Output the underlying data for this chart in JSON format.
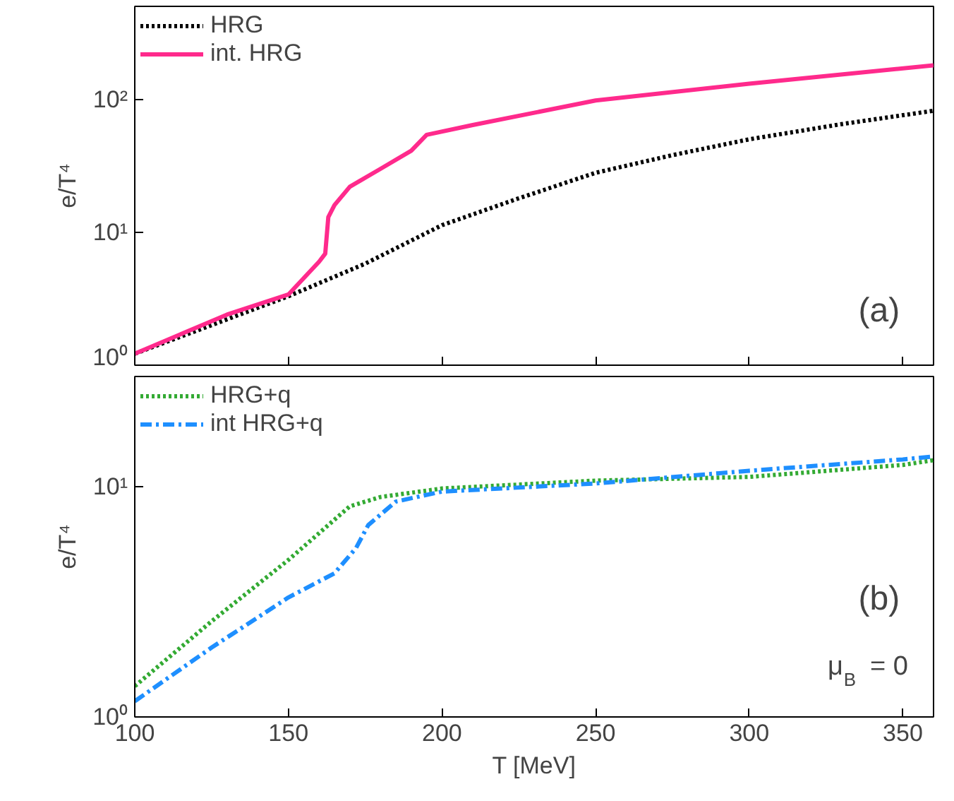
{
  "chart_data": [
    {
      "type": "line",
      "ylabel": "e/T⁴",
      "log": "y",
      "xlim": [
        100,
        360
      ],
      "ylim": [
        1,
        500
      ],
      "xticks": [
        100,
        150,
        200,
        250,
        300,
        350
      ],
      "yticks": [
        {
          "value": 1,
          "label": "10⁰"
        },
        {
          "value": 10,
          "label": "10¹"
        },
        {
          "value": 100,
          "label": "10²"
        }
      ],
      "tick_labels": "y",
      "grid": false,
      "legend": "top left",
      "annotations": [
        "(a)"
      ],
      "series": [
        {
          "name": "HRG",
          "color": "#000000",
          "line_style": "dotted",
          "x": [
            100,
            125,
            150,
            175,
            200,
            225,
            250,
            275,
            300,
            330,
            360
          ],
          "values": [
            1.22,
            2.0,
            3.3,
            5.8,
            11.3,
            18,
            28,
            38,
            50,
            65,
            82
          ]
        },
        {
          "name": "int. HRG",
          "color": "#ff2a8c",
          "line_style": "solid",
          "x": [
            100,
            130,
            150,
            160,
            162,
            163,
            165,
            170,
            180,
            190,
            195,
            210,
            250,
            300,
            360
          ],
          "values": [
            1.22,
            2.4,
            3.4,
            6,
            6.9,
            13,
            16,
            22,
            30,
            41,
            54,
            64,
            98,
            131,
            180
          ]
        }
      ]
    },
    {
      "type": "line",
      "xlabel": "T [MeV]",
      "ylabel": "e/T⁴",
      "log": "y",
      "xlim": [
        100,
        360
      ],
      "ylim": [
        1,
        30
      ],
      "xticks": [
        100,
        150,
        200,
        250,
        300,
        350
      ],
      "yticks": [
        {
          "value": 1,
          "label": "10⁰"
        },
        {
          "value": 10,
          "label": "10¹"
        }
      ],
      "grid": false,
      "legend": "top left",
      "annotations": [
        "(b)",
        "μ$_{B}$ = 0"
      ],
      "series": [
        {
          "name": "HRG+q",
          "color": "#33aa33",
          "line_style": "dotted",
          "x": [
            100,
            125,
            150,
            170,
            180,
            200,
            250,
            300,
            350,
            360
          ],
          "values": [
            1.36,
            2.6,
            4.8,
            8.2,
            9.0,
            9.8,
            10.6,
            11,
            12.4,
            13
          ]
        },
        {
          "name": "int HRG+q",
          "color": "#1e8fff",
          "line_style": "dashed",
          "x": [
            100,
            125,
            150,
            165,
            172,
            176,
            185,
            200,
            250,
            300,
            350,
            360
          ],
          "values": [
            1.17,
            2.0,
            3.3,
            4.2,
            5.4,
            6.8,
            8.6,
            9.5,
            10.3,
            11.7,
            13.1,
            13.5
          ]
        }
      ]
    }
  ]
}
